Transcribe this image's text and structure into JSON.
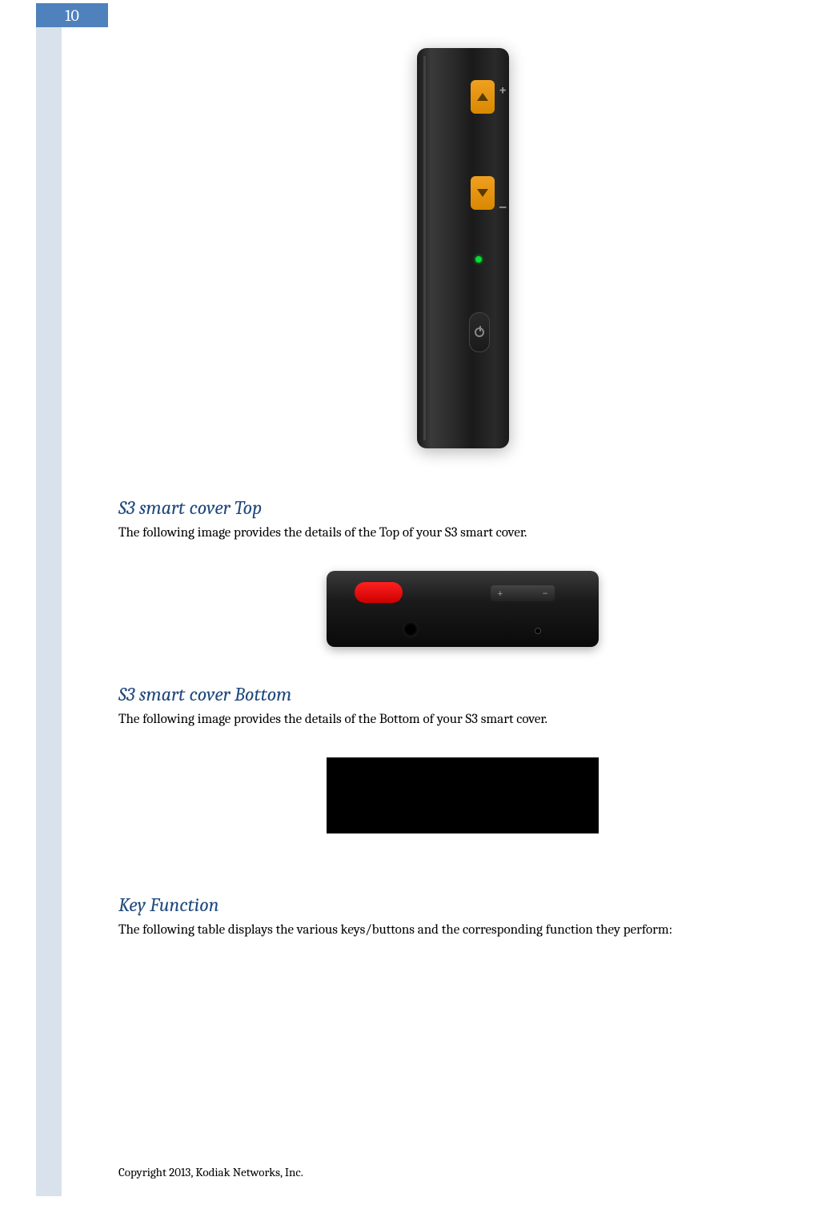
{
  "page_number": "10",
  "sections": {
    "top_cover": {
      "heading": "S3 smart cover Top",
      "text": "The following image provides the details of the Top of your S3 smart cover."
    },
    "bottom_cover": {
      "heading": "S3 smart cover Bottom",
      "text": "The following image provides the details of the Bottom of your S3 smart cover."
    },
    "key_function": {
      "heading": "Key Function",
      "text": "The following table displays the various keys/buttons and the corresponding function they perform:"
    }
  },
  "footer": "Copyright 2013, Kodiak Networks, Inc.",
  "colors": {
    "heading_color": "#1f497d",
    "page_tab_bg": "#4f81bd",
    "sidebar_bg": "#d9e2ec",
    "body_text": "#000000"
  },
  "device_side_view": {
    "buttons": [
      {
        "type": "yellow-arrow-up",
        "label": "+"
      },
      {
        "type": "yellow-arrow-down",
        "label": "−"
      },
      {
        "type": "green-led"
      },
      {
        "type": "power-button"
      }
    ],
    "body_color": "#1a1a1a",
    "accent_color": "#f0a020"
  },
  "device_top_view": {
    "elements": [
      {
        "type": "red-button",
        "color": "#ff2020"
      },
      {
        "type": "audio-jack"
      },
      {
        "type": "volume-rocker",
        "plus": "+",
        "minus": "−"
      },
      {
        "type": "mic-hole"
      }
    ],
    "body_color": "#1a1a1a"
  },
  "device_bottom_view": {
    "body_color": "#000000"
  },
  "top_rocker": {
    "plus": "+",
    "minus": "−"
  }
}
